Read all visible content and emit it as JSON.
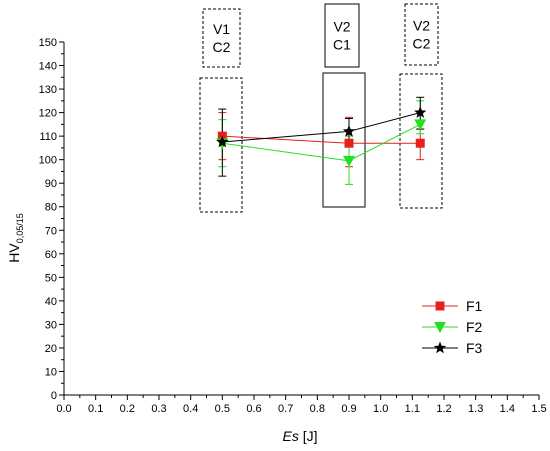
{
  "chart_data": {
    "type": "line",
    "xlabel_var": "Es",
    "xlabel_unit": " [J]",
    "ylabel_main": "HV",
    "ylabel_sub": "0,05/15",
    "xlim": [
      0.0,
      1.5
    ],
    "ylim": [
      0,
      150
    ],
    "x_ticks": [
      "0.0",
      "0.1",
      "0.2",
      "0.3",
      "0.4",
      "0.5",
      "0.6",
      "0.7",
      "0.8",
      "0.9",
      "1.0",
      "1.1",
      "1.2",
      "1.3",
      "1.4",
      "1.5"
    ],
    "y_ticks": [
      "0",
      "10",
      "20",
      "30",
      "40",
      "50",
      "60",
      "70",
      "80",
      "90",
      "100",
      "110",
      "120",
      "130",
      "140",
      "150"
    ],
    "grid": false,
    "legend_position": "right",
    "x": [
      0.5,
      0.9,
      1.125
    ],
    "series": [
      {
        "name": "F1",
        "color": "#e8201c",
        "marker": "square",
        "values": [
          110,
          107,
          107
        ],
        "err_low": [
          100,
          97,
          100
        ],
        "err_high": [
          120,
          118,
          113
        ]
      },
      {
        "name": "F2",
        "color": "#22e022",
        "marker": "triangle-down",
        "values": [
          107,
          99.5,
          115
        ],
        "err_low": [
          97,
          89.5,
          111
        ],
        "err_high": [
          117,
          110,
          125
        ]
      },
      {
        "name": "F3",
        "color": "#000000",
        "marker": "star",
        "values": [
          107.5,
          112,
          120
        ],
        "err_low": [
          93,
          107,
          113
        ],
        "err_high": [
          121.5,
          117.5,
          126.5
        ]
      }
    ],
    "annotations": [
      {
        "line1": "V1",
        "line2": "C2",
        "dashed": true
      },
      {
        "line1": "V2",
        "line2": "C1",
        "dashed": false
      },
      {
        "line1": "V2",
        "line2": "C2",
        "dashed": true
      }
    ]
  }
}
